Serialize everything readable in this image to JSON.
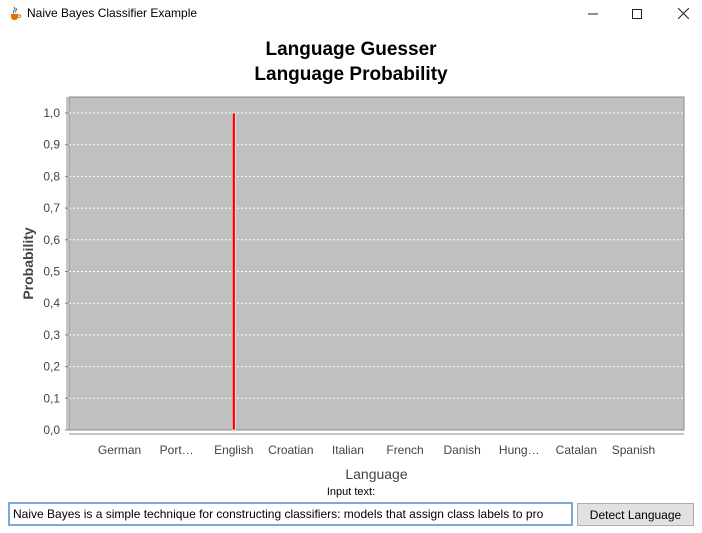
{
  "window": {
    "title": "Naive Bayes Classifier Example",
    "app_icon": "java-coffee-icon",
    "controls": [
      "minimize-icon",
      "maximize-icon",
      "close-icon"
    ]
  },
  "chart_data": {
    "type": "bar",
    "title": "Language Guesser",
    "subtitle": "Language Probability",
    "xlabel": "Language",
    "ylabel": "Probability",
    "categories": [
      "German",
      "Port…",
      "English",
      "Croatian",
      "Italian",
      "French",
      "Danish",
      "Hung…",
      "Catalan",
      "Spanish"
    ],
    "values": [
      0,
      0,
      1.0,
      0,
      0,
      0,
      0,
      0,
      0,
      0
    ],
    "ylim": [
      0,
      1.0
    ],
    "yticks": [
      "0,0",
      "0,1",
      "0,2",
      "0,3",
      "0,4",
      "0,5",
      "0,6",
      "0,7",
      "0,8",
      "0,9",
      "1,0"
    ],
    "grid": true,
    "colors": {
      "plot_background": "#c0c0c0",
      "bar": "#ff0000",
      "grid": "#ffffff"
    }
  },
  "input": {
    "label": "Input text:",
    "value": "Naive Bayes is a simple technique for constructing classifiers: models that assign class labels to pro"
  },
  "button": {
    "label": "Detect Language"
  }
}
